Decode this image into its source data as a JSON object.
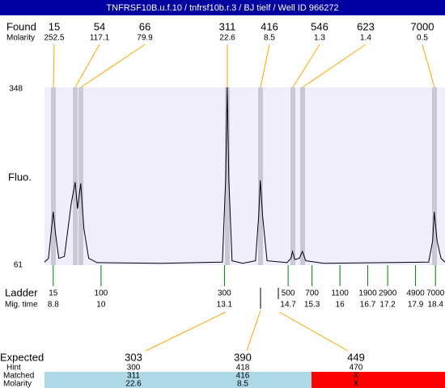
{
  "title": "TNFRSF10B.u.f.10 / tnfrsf10b.r.3 / BJ tielf / Well ID 966272",
  "found": {
    "label": "Found",
    "sizes": [
      15,
      54,
      66,
      311,
      416,
      546,
      623,
      7000
    ]
  },
  "found_molarity": {
    "label": "Molarity",
    "values": [
      252.5,
      117.1,
      79.9,
      22.6,
      8.5,
      1.3,
      1.4,
      0.5
    ]
  },
  "y_axis": {
    "label": "Fluo.",
    "max": 348,
    "min": 61
  },
  "trace": {
    "x": [
      8.58,
      8.68,
      8.74,
      8.8,
      8.86,
      8.94,
      9.08,
      9.25,
      9.35,
      9.41,
      9.49,
      9.57,
      9.69,
      9.9,
      11.52,
      13.05,
      13.13,
      13.17,
      13.21,
      13.29,
      13.56,
      13.88,
      13.96,
      14.0,
      14.06,
      14.17,
      14.67,
      14.77,
      14.81,
      14.87,
      14.98,
      15.06,
      15.14,
      15.59,
      18.23,
      18.33,
      18.37,
      18.44,
      18.54,
      18.64
    ],
    "y": [
      66,
      72,
      110,
      147,
      110,
      72,
      75,
      160,
      195,
      152,
      193,
      120,
      72,
      65,
      64,
      66,
      200,
      348,
      200,
      68,
      64,
      68,
      140,
      198,
      140,
      68,
      65,
      72,
      83,
      70,
      72,
      83,
      68,
      64,
      66,
      100,
      147,
      100,
      72,
      66
    ]
  },
  "ladder": {
    "label": "Ladder",
    "sizes": [
      15,
      100,
      300,
      500,
      700,
      1100,
      1900,
      2900,
      4900,
      7000
    ]
  },
  "mig_time": {
    "label": "Mig. time",
    "values": [
      8.8,
      10,
      13.1,
      14.7,
      15.3,
      16,
      16.7,
      17.2,
      17.9,
      18.4
    ]
  },
  "expected": {
    "label": "Expected",
    "values": [
      303,
      390,
      449
    ]
  },
  "hint": {
    "label": "Hint",
    "values": [
      300,
      418,
      470
    ]
  },
  "matched": {
    "label": "Matched",
    "values": [
      311,
      416,
      "X"
    ]
  },
  "matched_molarity": {
    "label": "Molarity",
    "values": [
      22.6,
      8.5,
      "X"
    ]
  }
}
